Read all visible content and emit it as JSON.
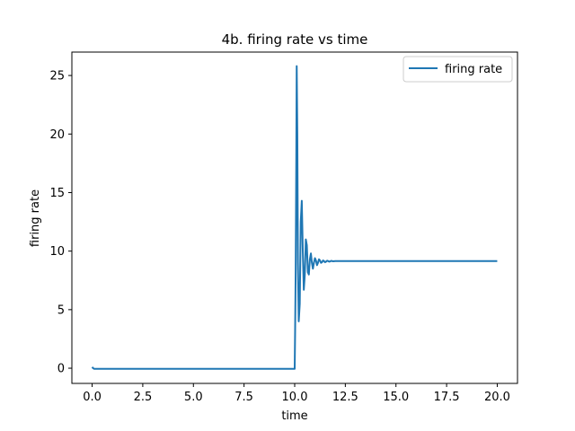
{
  "chart_data": {
    "type": "line",
    "title": "4b. firing rate vs time",
    "xlabel": "time",
    "ylabel": "firing rate",
    "xlim": [
      -1.0,
      21.0
    ],
    "ylim": [
      -1.3,
      27.0
    ],
    "xticks": [
      "0.0",
      "2.5",
      "5.0",
      "7.5",
      "10.0",
      "12.5",
      "15.0",
      "17.5",
      "20.0"
    ],
    "yticks": [
      "0",
      "5",
      "10",
      "15",
      "20",
      "25"
    ],
    "grid": false,
    "legend_position": "top-right",
    "series": [
      {
        "name": "firing rate",
        "color": "#1f77b4",
        "x": [
          0.0,
          0.05,
          0.1,
          0.15,
          1.0,
          5.0,
          9.0,
          10.0,
          10.02,
          10.05,
          10.08,
          10.1,
          10.13,
          10.16,
          10.2,
          10.25,
          10.3,
          10.35,
          10.4,
          10.45,
          10.5,
          10.55,
          10.6,
          10.65,
          10.7,
          10.75,
          10.8,
          10.85,
          10.9,
          10.95,
          11.0,
          11.05,
          11.1,
          11.15,
          11.2,
          11.25,
          11.3,
          11.35,
          11.4,
          11.45,
          11.5,
          11.55,
          11.6,
          11.65,
          11.7,
          11.75,
          11.8,
          11.85,
          11.9,
          12.0,
          12.5,
          15.0,
          20.0
        ],
        "y": [
          0.1,
          0.0,
          -0.05,
          -0.05,
          -0.05,
          -0.05,
          -0.05,
          -0.05,
          3.0,
          8.5,
          18.0,
          25.8,
          20.0,
          9.0,
          4.0,
          5.5,
          12.5,
          14.3,
          10.0,
          6.7,
          8.0,
          11.0,
          10.5,
          8.2,
          8.0,
          9.3,
          9.8,
          9.0,
          8.5,
          9.0,
          9.4,
          9.2,
          8.8,
          9.0,
          9.3,
          9.2,
          9.0,
          9.05,
          9.2,
          9.15,
          9.05,
          9.1,
          9.18,
          9.15,
          9.1,
          9.12,
          9.17,
          9.15,
          9.13,
          9.15,
          9.15,
          9.15,
          9.15
        ]
      }
    ]
  }
}
